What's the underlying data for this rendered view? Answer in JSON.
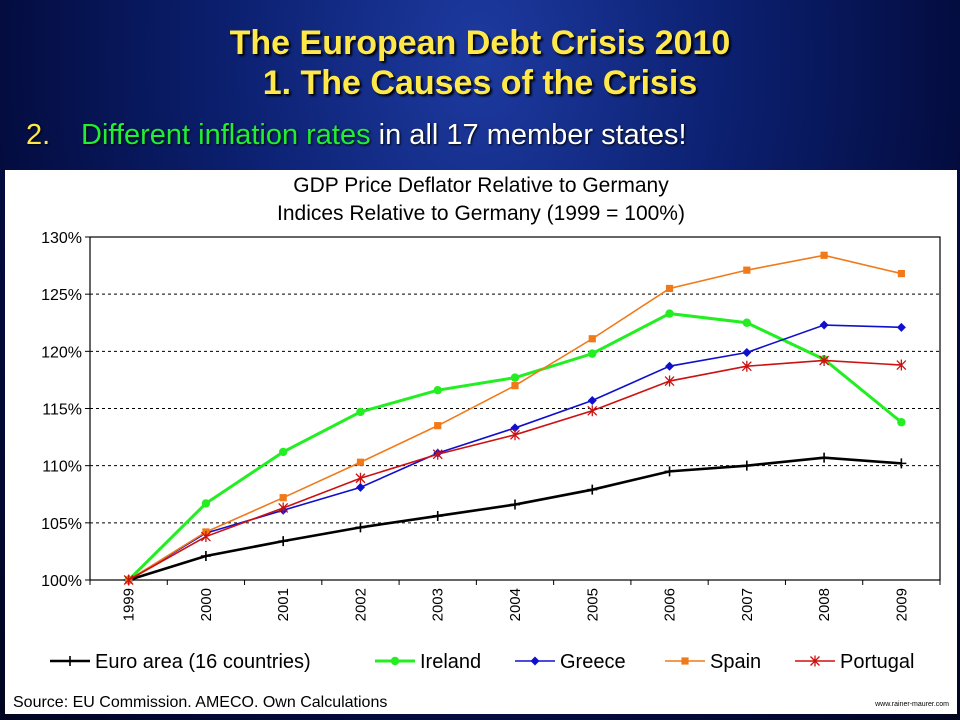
{
  "slide": {
    "title_line1": "The European Debt Crisis 2010",
    "title_line2": "1. The Causes of the Crisis",
    "bullet_number": "2.",
    "bullet_highlight": "Different inflation rates",
    "bullet_rest": " in all 17 member states!"
  },
  "footer": {
    "source": "Source: EU Commission. AMECO. Own Calculations",
    "credit": "www.rainer-maurer.com"
  },
  "chart_data": {
    "type": "line",
    "title": "GDP Price Deflator Relative to Germany",
    "subtitle": "Indices Relative to Germany (1999 = 100%)",
    "x": [
      "1999",
      "2000",
      "2001",
      "2002",
      "2003",
      "2004",
      "2005",
      "2006",
      "2007",
      "2008",
      "2009"
    ],
    "ylim": [
      100,
      130
    ],
    "yticks": [
      100,
      105,
      110,
      115,
      120,
      125,
      130
    ],
    "ytick_labels": [
      "100%",
      "105%",
      "110%",
      "115%",
      "120%",
      "125%",
      "130%"
    ],
    "grid": "horizontal dashed",
    "legend_position": "bottom",
    "series": [
      {
        "name": "Euro area (16 countries)",
        "color": "#000000",
        "marker": "plus",
        "values": [
          100,
          102.1,
          103.4,
          104.6,
          105.6,
          106.6,
          107.9,
          109.5,
          110.0,
          110.7,
          110.2
        ]
      },
      {
        "name": "Ireland",
        "color": "#22ee22",
        "marker": "circle",
        "values": [
          100,
          106.7,
          111.2,
          114.7,
          116.6,
          117.7,
          119.8,
          123.3,
          122.5,
          119.3,
          113.8
        ]
      },
      {
        "name": "Greece",
        "color": "#1010cc",
        "marker": "diamond",
        "values": [
          100,
          104.1,
          106.1,
          108.1,
          111.1,
          113.3,
          115.7,
          118.7,
          119.9,
          122.3,
          122.1
        ]
      },
      {
        "name": "Spain",
        "color": "#f07a1a",
        "marker": "square",
        "values": [
          100,
          104.2,
          107.2,
          110.3,
          113.5,
          117.0,
          121.1,
          125.5,
          127.1,
          128.4,
          126.8
        ]
      },
      {
        "name": "Portugal",
        "color": "#cc1111",
        "marker": "star",
        "values": [
          100,
          103.8,
          106.3,
          108.9,
          111.0,
          112.7,
          114.8,
          117.4,
          118.7,
          119.2,
          118.8
        ]
      }
    ]
  }
}
